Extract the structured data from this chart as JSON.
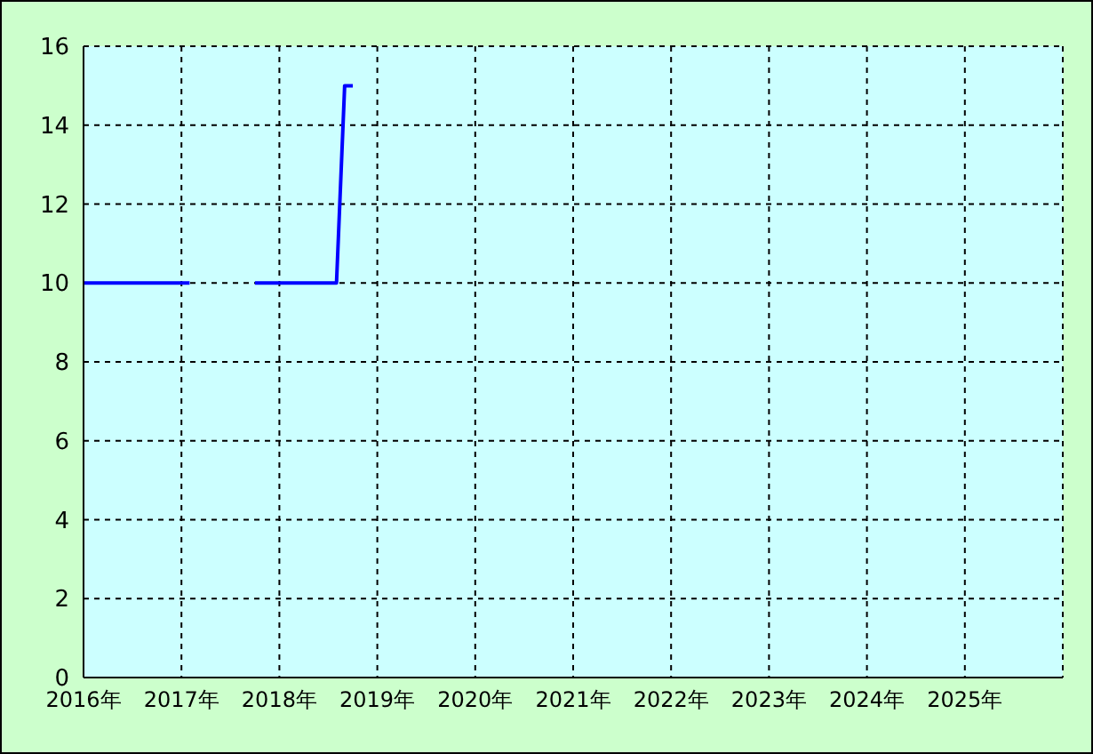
{
  "chart_data": {
    "type": "line",
    "x": [
      "2016-01",
      "2017-02",
      "2017-06",
      "2017-10",
      "2018-08",
      "2018-09",
      "2018-10"
    ],
    "series": [
      {
        "color": "#0000ff",
        "values": [
          10,
          10,
          null,
          10,
          10,
          15,
          15
        ]
      }
    ],
    "xlim": [
      "2016",
      "2026"
    ],
    "xticks": [
      {
        "value": "2016",
        "label": "2016年"
      },
      {
        "value": "2017",
        "label": "2017年"
      },
      {
        "value": "2018",
        "label": "2018年"
      },
      {
        "value": "2019",
        "label": "2019年"
      },
      {
        "value": "2020",
        "label": "2020年"
      },
      {
        "value": "2021",
        "label": "2021年"
      },
      {
        "value": "2022",
        "label": "2022年"
      },
      {
        "value": "2023",
        "label": "2023年"
      },
      {
        "value": "2024",
        "label": "2024年"
      },
      {
        "value": "2025",
        "label": "2025年"
      }
    ],
    "ylim": [
      0,
      16
    ],
    "yticks": [
      0,
      2,
      4,
      6,
      8,
      10,
      12,
      14,
      16
    ],
    "grid": true,
    "marker": "none",
    "line_style": "solid"
  }
}
